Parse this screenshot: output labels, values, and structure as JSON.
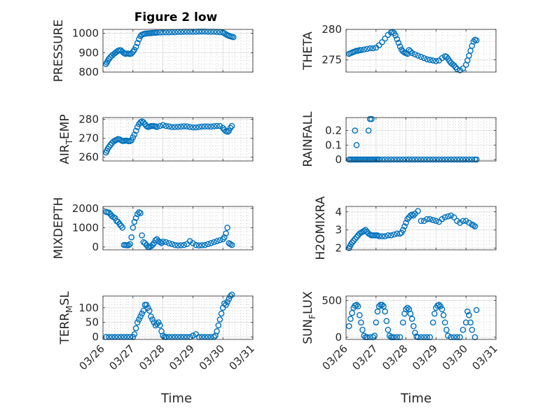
{
  "figure": {
    "title": "Figure 2 low",
    "marker_color": "#0072bd",
    "date_ticks": [
      "03/26",
      "03/27",
      "03/28",
      "03/29",
      "03/30",
      "03/31"
    ],
    "xlabel": "Time"
  },
  "chart_data": [
    {
      "type": "scatter",
      "id": "pressure",
      "ylabel": "PRESSURE",
      "title": "Figure 2 low",
      "xlim": [
        0,
        5
      ],
      "ylim": [
        800,
        1020
      ],
      "yticks": [
        800,
        900,
        1000
      ],
      "grid": true,
      "minor_grid": true,
      "x": [
        0.1,
        0.13,
        0.16,
        0.2,
        0.25,
        0.3,
        0.35,
        0.4,
        0.45,
        0.5,
        0.55,
        0.6,
        0.65,
        0.7,
        0.75,
        0.8,
        0.85,
        0.9,
        0.95,
        1.0,
        1.05,
        1.1,
        1.15,
        1.2,
        1.25,
        1.3,
        1.35,
        1.4,
        1.45,
        1.5,
        1.55,
        1.6,
        1.65,
        1.7,
        1.75,
        1.8,
        1.9,
        2.0,
        2.1,
        2.2,
        2.3,
        2.4,
        2.5,
        2.6,
        2.7,
        2.8,
        2.9,
        3.0,
        3.1,
        3.2,
        3.3,
        3.4,
        3.5,
        3.6,
        3.7,
        3.8,
        3.9,
        4.0,
        4.05,
        4.1,
        4.15,
        4.2,
        4.25,
        4.3,
        4.35
      ],
      "y": [
        842,
        850,
        858,
        868,
        878,
        885,
        892,
        898,
        904,
        910,
        913,
        912,
        905,
        898,
        894,
        896,
        895,
        893,
        896,
        905,
        915,
        930,
        950,
        970,
        985,
        993,
        996,
        998,
        999,
        1000,
        1000,
        1001,
        1002,
        1002,
        1003,
        1003,
        1004,
        1005,
        1005,
        1005,
        1006,
        1006,
        1007,
        1007,
        1008,
        1008,
        1008,
        1008,
        1008,
        1009,
        1009,
        1009,
        1008,
        1008,
        1008,
        1007,
        1006,
        1004,
        1000,
        995,
        990,
        987,
        984,
        982,
        980
      ]
    },
    {
      "type": "scatter",
      "id": "theta",
      "ylabel": "THETA",
      "xlim": [
        0,
        5
      ],
      "ylim": [
        273,
        280
      ],
      "yticks": [
        275,
        280
      ],
      "grid": true,
      "minor_grid": true,
      "x": [
        0.1,
        0.15,
        0.2,
        0.25,
        0.3,
        0.35,
        0.4,
        0.45,
        0.5,
        0.6,
        0.7,
        0.8,
        0.9,
        1.0,
        1.1,
        1.2,
        1.3,
        1.4,
        1.5,
        1.55,
        1.6,
        1.65,
        1.7,
        1.75,
        1.8,
        1.85,
        1.9,
        1.95,
        2.0,
        2.05,
        2.1,
        2.15,
        2.2,
        2.3,
        2.4,
        2.5,
        2.6,
        2.7,
        2.8,
        2.9,
        3.0,
        3.1,
        3.2,
        3.3,
        3.35,
        3.4,
        3.45,
        3.5,
        3.55,
        3.6,
        3.65,
        3.7,
        3.8,
        3.9,
        4.0,
        4.05,
        4.1,
        4.15,
        4.2,
        4.25,
        4.3,
        4.35
      ],
      "y": [
        276,
        276.1,
        276.2,
        276.3,
        276.4,
        276.5,
        276.5,
        276.6,
        276.6,
        276.7,
        276.8,
        276.9,
        276.9,
        277,
        277.4,
        277.9,
        278.5,
        279.1,
        279.5,
        279.6,
        279.4,
        279,
        278.4,
        277.8,
        277.2,
        276.7,
        276.4,
        276.2,
        276.1,
        276,
        276.6,
        276.4,
        276.1,
        275.9,
        275.7,
        275.5,
        275.3,
        275.1,
        275,
        274.9,
        274.8,
        274.9,
        275.3,
        275.6,
        275.5,
        275.2,
        274.8,
        274.5,
        274.3,
        274.1,
        273.8,
        273.5,
        273.3,
        273.6,
        274.2,
        274.9,
        275.7,
        276.5,
        277.3,
        278.0,
        278.3,
        278.2
      ]
    },
    {
      "type": "scatter",
      "id": "air_temp",
      "ylabel": "AIR_TEMP",
      "ylabel_parts": [
        "AIR",
        "T",
        "EMP"
      ],
      "xlim": [
        0,
        5
      ],
      "ylim": [
        258,
        281
      ],
      "yticks": [
        260,
        270,
        280
      ],
      "grid": true,
      "minor_grid": true,
      "x": [
        0.1,
        0.13,
        0.16,
        0.2,
        0.25,
        0.3,
        0.35,
        0.4,
        0.45,
        0.5,
        0.55,
        0.6,
        0.65,
        0.7,
        0.75,
        0.8,
        0.85,
        0.9,
        0.95,
        1.0,
        1.05,
        1.1,
        1.15,
        1.2,
        1.25,
        1.3,
        1.35,
        1.4,
        1.45,
        1.5,
        1.55,
        1.6,
        1.65,
        1.7,
        1.75,
        1.8,
        1.9,
        2.0,
        2.1,
        2.2,
        2.3,
        2.4,
        2.5,
        2.6,
        2.7,
        2.8,
        2.9,
        3.0,
        3.1,
        3.2,
        3.3,
        3.4,
        3.5,
        3.6,
        3.7,
        3.8,
        3.9,
        4.0,
        4.05,
        4.1,
        4.15,
        4.2,
        4.25,
        4.3
      ],
      "y": [
        262.5,
        263.5,
        264.5,
        265.5,
        266.5,
        267.5,
        268.3,
        268.8,
        269.2,
        269.6,
        269.5,
        269,
        268.6,
        268.6,
        268.8,
        268.8,
        268.5,
        268.5,
        269,
        270.5,
        272,
        274,
        276,
        277.5,
        278.5,
        279,
        278.5,
        277.5,
        276.5,
        276,
        276.2,
        276.5,
        276.5,
        276.5,
        276.3,
        276,
        276.5,
        277,
        276.5,
        276.3,
        276,
        276,
        276.1,
        276.2,
        276.4,
        276.3,
        276,
        275.8,
        275.8,
        276,
        276.2,
        276.3,
        276.3,
        276.2,
        276.4,
        276.6,
        276.5,
        275.5,
        274.5,
        273.8,
        273.5,
        274,
        275.5,
        276.5
      ]
    },
    {
      "type": "scatter",
      "id": "rainfall",
      "ylabel": "RAINFALL",
      "xlim": [
        0,
        5
      ],
      "ylim": [
        -0.01,
        0.29
      ],
      "yticks": [
        0,
        0.1,
        0.2
      ],
      "ytick_labels": [
        "0",
        "0.1",
        "0.2"
      ],
      "grid": true,
      "minor_grid": true,
      "x": [
        0.1,
        0.15,
        0.2,
        0.25,
        0.3,
        0.35,
        0.4,
        0.45,
        0.5,
        0.55,
        0.6,
        0.65,
        0.7,
        0.75,
        0.8,
        0.85,
        0.9,
        0.95,
        1.0,
        1.05,
        1.1,
        1.2,
        1.3,
        1.4,
        1.5,
        1.6,
        1.7,
        1.8,
        1.9,
        2.0,
        2.1,
        2.2,
        2.3,
        2.4,
        2.5,
        2.6,
        2.7,
        2.8,
        2.9,
        3.0,
        3.1,
        3.2,
        3.3,
        3.4,
        3.5,
        3.6,
        3.7,
        3.8,
        3.9,
        4.0,
        4.1,
        4.2,
        4.3,
        4.35,
        0.3,
        0.35,
        0.75,
        0.8,
        0.85
      ],
      "y": [
        0,
        0,
        0,
        0,
        0,
        0,
        0,
        0,
        0,
        0,
        0,
        0,
        0,
        0,
        0,
        0,
        0,
        0,
        0,
        0,
        0,
        0,
        0,
        0,
        0,
        0,
        0,
        0,
        0,
        0,
        0,
        0,
        0,
        0,
        0,
        0,
        0,
        0,
        0,
        0,
        0,
        0,
        0,
        0,
        0,
        0,
        0,
        0,
        0,
        0,
        0,
        0,
        0,
        0,
        0.2,
        0.1,
        0.2,
        0.28,
        0.28
      ]
    },
    {
      "type": "scatter",
      "id": "mixdepth",
      "ylabel": "MIXDEPTH",
      "xlim": [
        0,
        5
      ],
      "ylim": [
        -150,
        2100
      ],
      "yticks": [
        0,
        1000,
        2000
      ],
      "grid": true,
      "minor_grid": true,
      "x": [
        0.1,
        0.15,
        0.2,
        0.25,
        0.3,
        0.35,
        0.4,
        0.45,
        0.5,
        0.55,
        0.6,
        0.65,
        0.7,
        0.75,
        0.8,
        0.85,
        0.9,
        0.95,
        1.0,
        1.05,
        1.1,
        1.15,
        1.2,
        1.25,
        1.3,
        1.35,
        1.4,
        1.45,
        1.5,
        1.55,
        1.6,
        1.65,
        1.7,
        1.75,
        1.8,
        1.85,
        1.9,
        1.95,
        2.0,
        2.1,
        2.2,
        2.3,
        2.4,
        2.5,
        2.6,
        2.7,
        2.8,
        2.9,
        3.0,
        3.1,
        3.2,
        3.3,
        3.4,
        3.5,
        3.6,
        3.7,
        3.8,
        3.9,
        4.0,
        4.05,
        4.1,
        4.15,
        4.2,
        4.25,
        4.3
      ],
      "y": [
        1820,
        1800,
        1780,
        1700,
        1600,
        1550,
        1500,
        1350,
        1300,
        1200,
        1100,
        1000,
        100,
        100,
        90,
        90,
        150,
        500,
        1000,
        1300,
        1500,
        1700,
        1800,
        1750,
        600,
        250,
        200,
        100,
        0,
        0,
        30,
        100,
        200,
        350,
        400,
        300,
        250,
        200,
        280,
        250,
        200,
        150,
        100,
        80,
        90,
        100,
        150,
        300,
        200,
        100,
        80,
        90,
        100,
        150,
        200,
        250,
        300,
        350,
        400,
        500,
        700,
        1000,
        200,
        150,
        100
      ]
    },
    {
      "type": "scatter",
      "id": "h2omixra",
      "ylabel": "H2OMIXRA",
      "xlim": [
        0,
        5
      ],
      "ylim": [
        1.9,
        4.3
      ],
      "yticks": [
        2,
        3,
        4
      ],
      "grid": true,
      "minor_grid": true,
      "x": [
        0.1,
        0.13,
        0.16,
        0.2,
        0.25,
        0.3,
        0.35,
        0.4,
        0.45,
        0.5,
        0.55,
        0.6,
        0.65,
        0.7,
        0.75,
        0.8,
        0.85,
        0.9,
        0.95,
        1.0,
        1.05,
        1.1,
        1.2,
        1.3,
        1.4,
        1.5,
        1.6,
        1.7,
        1.8,
        1.85,
        1.9,
        1.95,
        2.0,
        2.05,
        2.1,
        2.15,
        2.2,
        2.25,
        2.3,
        2.4,
        2.5,
        2.6,
        2.7,
        2.8,
        2.9,
        3.0,
        3.1,
        3.2,
        3.3,
        3.4,
        3.5,
        3.6,
        3.7,
        3.8,
        3.9,
        4.0,
        4.1,
        4.2,
        4.25,
        4.3
      ],
      "y": [
        2.0,
        2.1,
        2.2,
        2.3,
        2.4,
        2.5,
        2.6,
        2.7,
        2.8,
        2.85,
        2.9,
        2.95,
        3.0,
        2.9,
        2.8,
        2.75,
        2.7,
        2.7,
        2.7,
        2.7,
        2.7,
        2.65,
        2.65,
        2.65,
        2.7,
        2.7,
        2.75,
        2.8,
        2.8,
        2.85,
        3.0,
        3.2,
        3.4,
        3.6,
        3.7,
        3.8,
        3.85,
        3.8,
        3.9,
        4.05,
        3.5,
        3.5,
        3.6,
        3.6,
        3.55,
        3.5,
        3.45,
        3.6,
        3.7,
        3.75,
        3.8,
        3.7,
        3.5,
        3.4,
        3.5,
        3.5,
        3.4,
        3.3,
        3.25,
        3.2
      ]
    },
    {
      "type": "scatter",
      "id": "terr_msl",
      "ylabel": "TERR_MSL",
      "ylabel_parts": [
        "TERR",
        "M",
        "SL"
      ],
      "xlim": [
        0,
        5
      ],
      "ylim": [
        -8,
        140
      ],
      "yticks": [
        0,
        50,
        100
      ],
      "grid": true,
      "minor_grid": true,
      "x": [
        0.1,
        0.2,
        0.3,
        0.4,
        0.5,
        0.6,
        0.7,
        0.8,
        0.9,
        1.0,
        1.05,
        1.1,
        1.15,
        1.2,
        1.25,
        1.3,
        1.35,
        1.4,
        1.45,
        1.5,
        1.55,
        1.6,
        1.65,
        1.7,
        1.75,
        1.8,
        1.85,
        1.9,
        1.95,
        2.0,
        2.05,
        2.1,
        2.2,
        2.3,
        2.4,
        2.5,
        2.6,
        2.7,
        2.8,
        2.9,
        3.0,
        3.1,
        3.2,
        3.3,
        3.4,
        3.5,
        3.6,
        3.7,
        3.75,
        3.8,
        3.85,
        3.9,
        3.95,
        4.0,
        4.05,
        4.1,
        4.15,
        4.2,
        4.25,
        4.3
      ],
      "y": [
        0,
        0,
        0,
        0,
        0,
        0,
        0,
        0,
        0,
        0,
        10,
        30,
        50,
        60,
        70,
        80,
        90,
        110,
        110,
        100,
        90,
        70,
        60,
        50,
        40,
        45,
        50,
        40,
        20,
        5,
        0,
        0,
        0,
        0,
        0,
        0,
        0,
        0,
        0,
        0,
        5,
        10,
        0,
        0,
        0,
        0,
        0,
        0,
        5,
        20,
        40,
        60,
        80,
        100,
        115,
        110,
        120,
        130,
        140,
        145
      ]
    },
    {
      "type": "scatter",
      "id": "sun_flux",
      "ylabel": "SUN_FLUX",
      "ylabel_parts": [
        "SUN",
        "F",
        "LUX"
      ],
      "xlim": [
        0,
        5
      ],
      "ylim": [
        -30,
        560
      ],
      "yticks": [
        0,
        500
      ],
      "grid": true,
      "minor_grid": true,
      "x": [
        0.1,
        0.15,
        0.2,
        0.25,
        0.3,
        0.35,
        0.4,
        0.45,
        0.5,
        0.55,
        0.6,
        0.65,
        0.7,
        0.8,
        0.9,
        0.95,
        1.0,
        1.05,
        1.1,
        1.15,
        1.2,
        1.25,
        1.3,
        1.35,
        1.4,
        1.45,
        1.5,
        1.55,
        1.6,
        1.7,
        1.8,
        1.9,
        1.95,
        2.0,
        2.05,
        2.1,
        2.15,
        2.2,
        2.25,
        2.3,
        2.35,
        2.4,
        2.5,
        2.6,
        2.7,
        2.8,
        2.9,
        2.95,
        3.0,
        3.05,
        3.1,
        3.15,
        3.2,
        3.25,
        3.3,
        3.35,
        3.4,
        3.5,
        3.6,
        3.7,
        3.8,
        3.9,
        4.0,
        4.05,
        4.1,
        4.15,
        4.2,
        4.3,
        4.35
      ],
      "y": [
        150,
        250,
        330,
        400,
        430,
        440,
        420,
        300,
        200,
        100,
        20,
        0,
        0,
        0,
        0,
        20,
        200,
        350,
        420,
        440,
        440,
        420,
        350,
        220,
        100,
        20,
        0,
        0,
        0,
        0,
        0,
        200,
        320,
        380,
        400,
        380,
        320,
        250,
        150,
        60,
        10,
        0,
        0,
        0,
        0,
        0,
        200,
        320,
        400,
        430,
        440,
        420,
        380,
        300,
        200,
        100,
        20,
        0,
        0,
        0,
        0,
        100,
        200,
        350,
        300,
        200,
        100,
        0,
        370
      ]
    }
  ]
}
